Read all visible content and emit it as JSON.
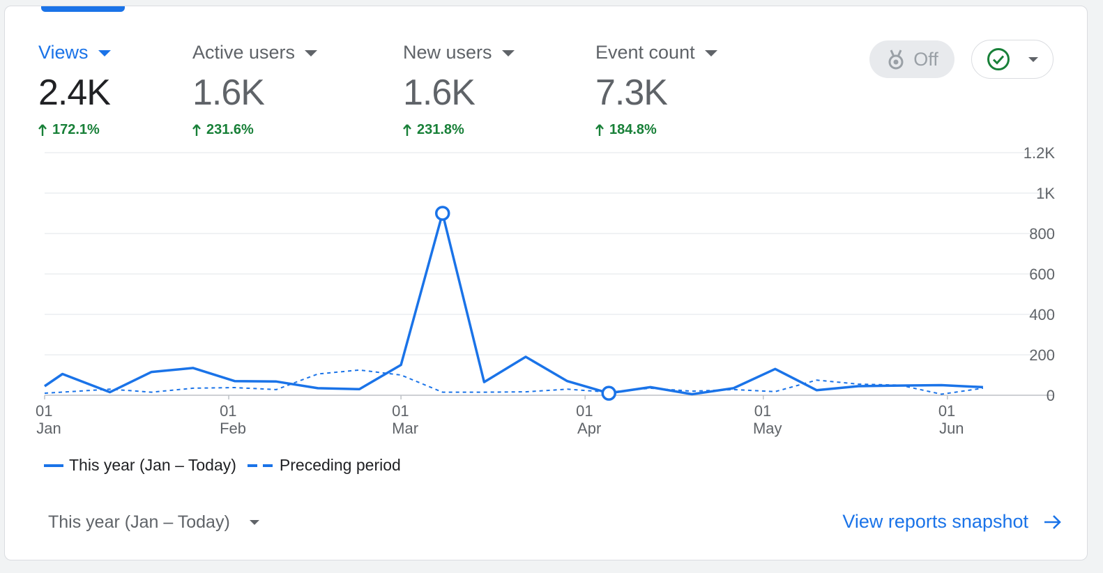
{
  "colors": {
    "accent": "#1a73e8",
    "positive": "#188038",
    "gridline": "#e8eaed",
    "axis_text": "#5f6368"
  },
  "metrics": [
    {
      "label": "Views",
      "value": "2.4K",
      "change": "172.1%",
      "active": true
    },
    {
      "label": "Active users",
      "value": "1.6K",
      "change": "231.6%",
      "active": false
    },
    {
      "label": "New users",
      "value": "1.6K",
      "change": "231.8%",
      "active": false
    },
    {
      "label": "Event count",
      "value": "7.3K",
      "change": "184.8%",
      "active": false
    }
  ],
  "controls": {
    "toggle_label": "Off",
    "toggle_icon": "award-icon",
    "status_icon": "check-circle-icon"
  },
  "chart_data": {
    "type": "line",
    "yticks": [
      "0",
      "200",
      "400",
      "600",
      "800",
      "1K",
      "1.2K"
    ],
    "ytick_values": [
      0,
      200,
      400,
      600,
      800,
      1000,
      1200
    ],
    "ylim": [
      0,
      1200
    ],
    "x_range": [
      "2024-01-01",
      "2024-06-11"
    ],
    "xticks": [
      {
        "date": "2024-01-01",
        "day": "01",
        "month": "Jan"
      },
      {
        "date": "2024-02-01",
        "day": "01",
        "month": "Feb"
      },
      {
        "date": "2024-03-01",
        "day": "01",
        "month": "Mar"
      },
      {
        "date": "2024-04-01",
        "day": "01",
        "month": "Apr"
      },
      {
        "date": "2024-05-01",
        "day": "01",
        "month": "May"
      },
      {
        "date": "2024-06-01",
        "day": "01",
        "month": "Jun"
      }
    ],
    "series": [
      {
        "name": "This year (Jan – Today)",
        "style": "solid",
        "points": [
          [
            "2024-01-01",
            45
          ],
          [
            "2024-01-04",
            105
          ],
          [
            "2024-01-12",
            15
          ],
          [
            "2024-01-19",
            115
          ],
          [
            "2024-01-26",
            135
          ],
          [
            "2024-02-02",
            70
          ],
          [
            "2024-02-09",
            68
          ],
          [
            "2024-02-16",
            35
          ],
          [
            "2024-02-23",
            30
          ],
          [
            "2024-03-01",
            150
          ],
          [
            "2024-03-08",
            900
          ],
          [
            "2024-03-15",
            65
          ],
          [
            "2024-03-22",
            190
          ],
          [
            "2024-03-29",
            70
          ],
          [
            "2024-04-05",
            10
          ],
          [
            "2024-04-12",
            40
          ],
          [
            "2024-04-19",
            5
          ],
          [
            "2024-04-26",
            35
          ],
          [
            "2024-05-03",
            130
          ],
          [
            "2024-05-10",
            25
          ],
          [
            "2024-05-17",
            45
          ],
          [
            "2024-05-24",
            48
          ],
          [
            "2024-05-31",
            50
          ],
          [
            "2024-06-07",
            40
          ]
        ],
        "markers": [
          "2024-03-08",
          "2024-04-05"
        ]
      },
      {
        "name": "Preceding period",
        "style": "dashed",
        "points": [
          [
            "2024-01-01",
            10
          ],
          [
            "2024-01-12",
            30
          ],
          [
            "2024-01-19",
            15
          ],
          [
            "2024-01-26",
            35
          ],
          [
            "2024-02-02",
            38
          ],
          [
            "2024-02-09",
            28
          ],
          [
            "2024-02-16",
            105
          ],
          [
            "2024-02-23",
            125
          ],
          [
            "2024-03-01",
            100
          ],
          [
            "2024-03-08",
            15
          ],
          [
            "2024-03-15",
            15
          ],
          [
            "2024-03-22",
            17
          ],
          [
            "2024-03-29",
            30
          ],
          [
            "2024-04-05",
            15
          ],
          [
            "2024-04-12",
            35
          ],
          [
            "2024-04-19",
            20
          ],
          [
            "2024-04-26",
            28
          ],
          [
            "2024-05-03",
            18
          ],
          [
            "2024-05-10",
            75
          ],
          [
            "2024-05-17",
            55
          ],
          [
            "2024-05-24",
            50
          ],
          [
            "2024-05-31",
            5
          ],
          [
            "2024-06-07",
            35
          ]
        ]
      }
    ]
  },
  "footer": {
    "range_label": "This year (Jan – Today)",
    "snapshot_link": "View reports snapshot"
  }
}
